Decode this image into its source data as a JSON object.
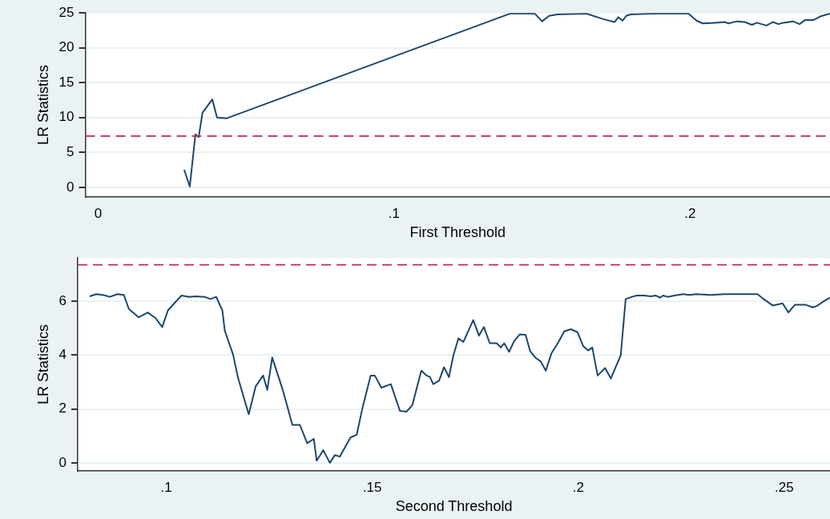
{
  "chart_data": [
    {
      "type": "line",
      "xlabel": "First Threshold",
      "ylabel": "LR Statistics",
      "xlim": [
        -0.0043,
        0.2473
      ],
      "ylim": [
        -1.4,
        25
      ],
      "xticks": [
        {
          "value": 0,
          "label": "0"
        },
        {
          "value": 0.1,
          "label": ".1"
        },
        {
          "value": 0.2,
          "label": ".2"
        }
      ],
      "yticks": [
        0,
        5,
        10,
        15,
        20,
        25
      ],
      "grid": "y",
      "ref_lines": [
        {
          "axis": "y",
          "value": 7.35,
          "color": "#c0284f",
          "line_style": "dashed"
        }
      ],
      "series": [
        {
          "color": "#1a476f",
          "x": [
            0.0291,
            0.031,
            0.0329,
            0.034,
            0.0353,
            0.0386,
            0.0402,
            0.0435,
            0.1391,
            0.1476,
            0.15,
            0.1524,
            0.1552,
            0.165,
            0.1701,
            0.1717,
            0.1745,
            0.1758,
            0.1772,
            0.1785,
            0.1799,
            0.1872,
            0.1995,
            0.2022,
            0.2043,
            0.2084,
            0.2117,
            0.213,
            0.2158,
            0.2185,
            0.2209,
            0.2226,
            0.2258,
            0.228,
            0.2299,
            0.2315,
            0.2348,
            0.237,
            0.2389,
            0.2418,
            0.244,
            0.2473
          ],
          "values": [
            2.5,
            0.1,
            7.6,
            7.2,
            10.7,
            12.6,
            10.0,
            9.9,
            24.9,
            24.9,
            23.8,
            24.6,
            24.8,
            24.9,
            24.2,
            24.0,
            23.7,
            24.4,
            23.9,
            24.6,
            24.8,
            24.9,
            24.9,
            23.9,
            23.5,
            23.6,
            23.7,
            23.5,
            23.8,
            23.7,
            23.3,
            23.6,
            23.2,
            23.7,
            23.4,
            23.6,
            23.8,
            23.4,
            24.0,
            24.0,
            24.5,
            24.9
          ]
        }
      ]
    },
    {
      "type": "line",
      "xlabel": "Second Threshold",
      "ylabel": "LR Statistics",
      "xlim": [
        0.0785,
        0.2611
      ],
      "ylim": [
        -0.3,
        7.6
      ],
      "xticks": [
        {
          "value": 0.1,
          "label": ".1"
        },
        {
          "value": 0.15,
          "label": ".15"
        },
        {
          "value": 0.2,
          "label": ".2"
        },
        {
          "value": 0.25,
          "label": ".25"
        }
      ],
      "yticks": [
        0,
        2,
        4,
        6
      ],
      "grid": "y",
      "ref_lines": [
        {
          "axis": "y",
          "value": 7.35,
          "color": "#c0284f",
          "line_style": "dashed"
        }
      ],
      "series": [
        {
          "color": "#1a476f",
          "x": [
            0.0814,
            0.083,
            0.0846,
            0.0863,
            0.0881,
            0.0897,
            0.0909,
            0.0933,
            0.0955,
            0.0974,
            0.099,
            0.1004,
            0.1024,
            0.1037,
            0.1055,
            0.1073,
            0.1093,
            0.1107,
            0.1121,
            0.1136,
            0.1142,
            0.1162,
            0.1174,
            0.12,
            0.1217,
            0.1235,
            0.1245,
            0.1257,
            0.1283,
            0.1306,
            0.1324,
            0.1342,
            0.1358,
            0.1365,
            0.1381,
            0.1397,
            0.1409,
            0.1421,
            0.1447,
            0.1462,
            0.1476,
            0.1496,
            0.1506,
            0.1522,
            0.1545,
            0.1567,
            0.1583,
            0.1597,
            0.1619,
            0.1632,
            0.164,
            0.1648,
            0.1662,
            0.1674,
            0.1686,
            0.1696,
            0.1709,
            0.1721,
            0.1745,
            0.1759,
            0.1771,
            0.1785,
            0.1802,
            0.1812,
            0.182,
            0.1832,
            0.1844,
            0.1858,
            0.1872,
            0.1883,
            0.1897,
            0.1909,
            0.1921,
            0.1935,
            0.1951,
            0.1966,
            0.1982,
            0.1998,
            0.2012,
            0.2024,
            0.2034,
            0.2047,
            0.2065,
            0.2079,
            0.2103,
            0.2115,
            0.213,
            0.2142,
            0.216,
            0.2176,
            0.2188,
            0.2198,
            0.2206,
            0.2217,
            0.2233,
            0.2255,
            0.2269,
            0.2287,
            0.232,
            0.2356,
            0.2401,
            0.2435,
            0.2447,
            0.2472,
            0.2496,
            0.251,
            0.2526,
            0.2551,
            0.2569,
            0.2579,
            0.2599,
            0.2611
          ],
          "values": [
            6.18,
            6.26,
            6.23,
            6.16,
            6.26,
            6.23,
            5.71,
            5.4,
            5.58,
            5.37,
            5.04,
            5.66,
            6.0,
            6.21,
            6.16,
            6.18,
            6.16,
            6.08,
            6.16,
            5.66,
            4.9,
            4.02,
            3.16,
            1.8,
            2.84,
            3.24,
            2.71,
            3.91,
            2.69,
            1.41,
            1.41,
            0.73,
            0.89,
            0.08,
            0.47,
            0.0,
            0.29,
            0.23,
            0.94,
            1.04,
            2.03,
            3.24,
            3.24,
            2.79,
            2.92,
            1.93,
            1.9,
            2.14,
            3.42,
            3.24,
            3.18,
            2.92,
            3.05,
            3.55,
            3.18,
            3.94,
            4.62,
            4.49,
            5.3,
            4.72,
            5.04,
            4.44,
            4.44,
            4.28,
            4.44,
            4.12,
            4.51,
            4.77,
            4.75,
            4.15,
            3.89,
            3.76,
            3.42,
            4.07,
            4.46,
            4.88,
            4.96,
            4.85,
            4.33,
            4.17,
            4.28,
            3.24,
            3.52,
            3.13,
            3.99,
            6.08,
            6.16,
            6.21,
            6.21,
            6.18,
            6.21,
            6.13,
            6.21,
            6.16,
            6.21,
            6.26,
            6.23,
            6.26,
            6.23,
            6.26,
            6.26,
            6.26,
            6.11,
            5.84,
            5.92,
            5.58,
            5.87,
            5.87,
            5.77,
            5.82,
            6.03,
            6.13
          ]
        }
      ]
    }
  ]
}
